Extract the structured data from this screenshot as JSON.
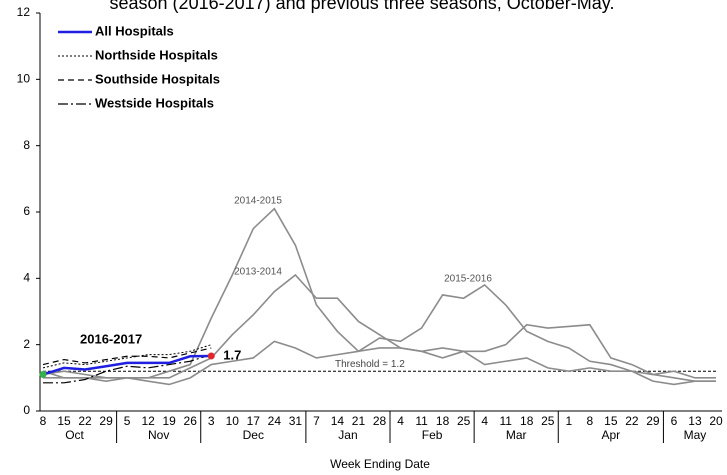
{
  "chart_data": {
    "type": "line",
    "title": "season (2016-2017) and previous three seasons, October-May.",
    "x_label": "Week Ending Date",
    "categories": [
      "8",
      "15",
      "22",
      "29",
      "5",
      "12",
      "19",
      "26",
      "3",
      "10",
      "17",
      "24",
      "31",
      "7",
      "14",
      "21",
      "28",
      "4",
      "11",
      "18",
      "25",
      "4",
      "11",
      "18",
      "25",
      "1",
      "8",
      "15",
      "22",
      "29",
      "6",
      "13",
      "20"
    ],
    "months": [
      "Oct",
      "Nov",
      "Dec",
      "Jan",
      "Feb",
      "Mar",
      "Apr",
      "May"
    ],
    "ylim": [
      0,
      12
    ],
    "yticks": [
      0,
      2,
      4,
      6,
      8,
      10,
      12
    ],
    "legend": "top-left",
    "current_season": "2016-2017",
    "threshold": {
      "value": 1.2,
      "label": "Threshold = 1.2",
      "color": "#000000"
    },
    "series": [
      {
        "name": "All Hospitals",
        "color": "#1f1fe0",
        "width": 2.5,
        "dash": "none",
        "first_point_color": "#33b34a",
        "last_point_color": "#e0262b",
        "values": [
          1.1,
          1.3,
          1.25,
          1.35,
          1.45,
          1.45,
          1.45,
          1.65,
          1.66,
          null,
          null,
          null,
          null,
          null,
          null,
          null,
          null,
          null,
          null,
          null,
          null,
          null,
          null,
          null,
          null,
          null,
          null,
          null,
          null,
          null,
          null,
          null,
          null
        ],
        "value_labels": [
          null,
          null,
          null,
          null,
          null,
          null,
          null,
          null,
          "1.7",
          null,
          null,
          null,
          null,
          null,
          null,
          null,
          null,
          null,
          null,
          null,
          null,
          null,
          null,
          null,
          null,
          null,
          null,
          null,
          null,
          null,
          null,
          null,
          null
        ]
      },
      {
        "name": "Northside Hospitals",
        "color": "#000000",
        "width": 1,
        "dash": "2,2",
        "values": [
          1.3,
          1.45,
          1.4,
          1.5,
          1.6,
          1.7,
          1.7,
          1.8,
          2.0,
          null,
          null,
          null,
          null,
          null,
          null,
          null,
          null,
          null,
          null,
          null,
          null,
          null,
          null,
          null,
          null,
          null,
          null,
          null,
          null,
          null,
          null,
          null,
          null
        ]
      },
      {
        "name": "Southside Hospitals",
        "color": "#000000",
        "width": 1.2,
        "dash": "6,4",
        "values": [
          1.4,
          1.55,
          1.45,
          1.55,
          1.65,
          1.65,
          1.6,
          1.75,
          1.9,
          null,
          null,
          null,
          null,
          null,
          null,
          null,
          null,
          null,
          null,
          null,
          null,
          null,
          null,
          null,
          null,
          null,
          null,
          null,
          null,
          null,
          null,
          null,
          null
        ]
      },
      {
        "name": "Westside Hospitals",
        "color": "#000000",
        "width": 1.2,
        "dash": "10,3,2,3",
        "values": [
          0.85,
          0.85,
          0.95,
          1.2,
          1.35,
          1.3,
          1.4,
          1.5,
          1.7,
          null,
          null,
          null,
          null,
          null,
          null,
          null,
          null,
          null,
          null,
          null,
          null,
          null,
          null,
          null,
          null,
          null,
          null,
          null,
          null,
          null,
          null,
          null,
          null
        ]
      }
    ],
    "seasons": [
      {
        "name": "2014-2015",
        "color": "#8c8c8c",
        "values": [
          1.1,
          1.2,
          1.1,
          1.0,
          1.0,
          1.0,
          1.2,
          1.4,
          2.8,
          4.1,
          5.5,
          6.1,
          5.0,
          3.2,
          2.4,
          1.8,
          1.9,
          1.9,
          1.8,
          1.6,
          1.8,
          1.4,
          1.5,
          1.6,
          1.3,
          1.2,
          1.3,
          1.2,
          1.2,
          1.1,
          1.2,
          1.0,
          1.0
        ]
      },
      {
        "name": "2013-2014",
        "color": "#8c8c8c",
        "values": [
          1.2,
          1.0,
          1.0,
          1.0,
          1.0,
          1.0,
          1.0,
          1.3,
          1.6,
          2.3,
          2.9,
          3.6,
          4.1,
          3.4,
          3.4,
          2.7,
          2.3,
          1.9,
          1.8,
          1.9,
          1.8,
          1.8,
          2.0,
          2.6,
          2.5,
          2.55,
          2.6,
          1.6,
          1.4,
          1.1,
          1.0,
          0.9,
          0.9
        ]
      },
      {
        "name": "2015-2016",
        "color": "#8c8c8c",
        "values": [
          1.0,
          1.0,
          1.0,
          0.9,
          1.0,
          0.9,
          0.8,
          1.0,
          1.4,
          1.5,
          1.6,
          2.1,
          1.9,
          1.6,
          1.7,
          1.8,
          2.2,
          2.1,
          2.5,
          3.5,
          3.4,
          3.8,
          3.2,
          2.4,
          2.1,
          1.9,
          1.5,
          1.4,
          1.2,
          0.9,
          0.8,
          0.9,
          0.9
        ]
      }
    ]
  }
}
